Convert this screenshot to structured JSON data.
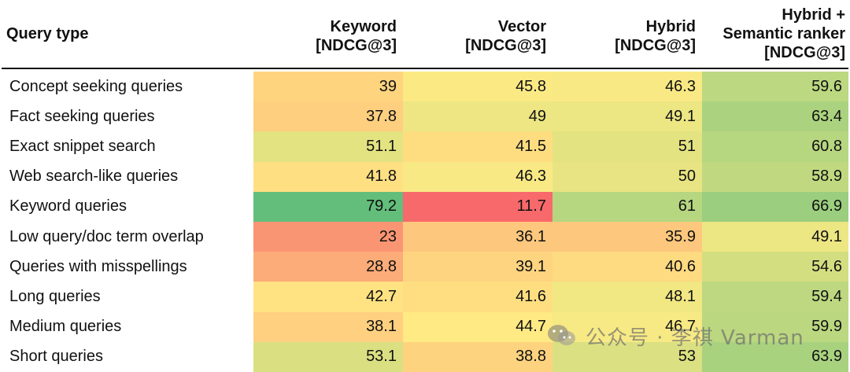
{
  "chart_data": {
    "type": "heatmap",
    "columns": [
      "Query type",
      "Keyword\n[NDCG@3]",
      "Vector\n[NDCG@3]",
      "Hybrid\n[NDCG@3]",
      "Hybrid +\nSemantic ranker\n[NDCG@3]"
    ],
    "rows": [
      {
        "label": "Concept seeking queries",
        "values": [
          39,
          45.8,
          46.3,
          59.6
        ]
      },
      {
        "label": "Fact seeking queries",
        "values": [
          37.8,
          49,
          49.1,
          63.4
        ]
      },
      {
        "label": "Exact snippet search",
        "values": [
          51.1,
          41.5,
          51,
          60.8
        ]
      },
      {
        "label": "Web search-like queries",
        "values": [
          41.8,
          46.3,
          50,
          58.9
        ]
      },
      {
        "label": "Keyword queries",
        "values": [
          79.2,
          11.7,
          61,
          66.9
        ]
      },
      {
        "label": "Low query/doc term overlap",
        "values": [
          23,
          36.1,
          35.9,
          49.1
        ]
      },
      {
        "label": "Queries with misspellings",
        "values": [
          28.8,
          39.1,
          40.6,
          54.6
        ]
      },
      {
        "label": "Long queries",
        "values": [
          42.7,
          41.6,
          48.1,
          59.4
        ]
      },
      {
        "label": "Medium queries",
        "values": [
          38.1,
          44.7,
          46.7,
          59.9
        ]
      },
      {
        "label": "Short queries",
        "values": [
          53.1,
          38.8,
          53,
          63.9
        ]
      }
    ],
    "color_scale": {
      "low": "#f8696b",
      "mid": "#ffeb84",
      "high": "#63be7b",
      "domain": [
        11.7,
        45,
        79.2
      ]
    }
  },
  "watermark": {
    "text": "公众号 · 李祺 Varman",
    "icon": "wechat-icon"
  }
}
